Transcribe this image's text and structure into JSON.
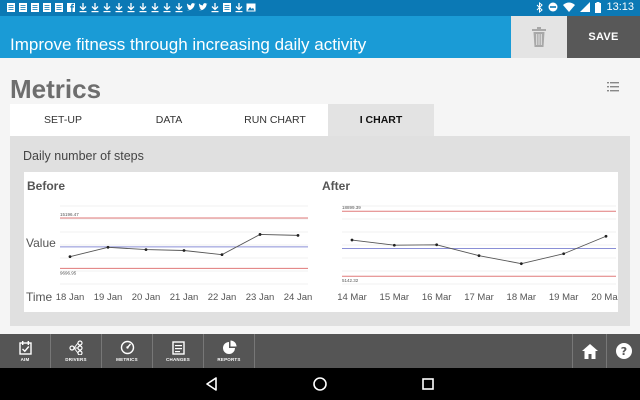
{
  "status_bar": {
    "notification_icons": [
      "document-icon",
      "document-icon",
      "document-icon",
      "document-icon",
      "document-icon",
      "facebook-icon",
      "download-icon",
      "download-icon",
      "download-icon",
      "download-icon",
      "download-icon",
      "download-icon",
      "download-icon",
      "download-icon",
      "download-icon",
      "twitter-icon",
      "twitter-icon",
      "download-icon",
      "document-icon",
      "download-icon",
      "photo-icon"
    ],
    "time": "13:13"
  },
  "header": {
    "title": "Improve fitness through increasing daily activity",
    "save_label": "SAVE"
  },
  "page": {
    "title": "Metrics"
  },
  "tabs": [
    {
      "label": "SET-UP",
      "active": false
    },
    {
      "label": "DATA",
      "active": false
    },
    {
      "label": "RUN CHART",
      "active": false
    },
    {
      "label": "I CHART",
      "active": true
    }
  ],
  "panel": {
    "title": "Daily number of steps"
  },
  "chart_data": [
    {
      "type": "line",
      "title": "Before",
      "ylabel": "Value",
      "xlabel": "Time",
      "categories": [
        "18 Jan",
        "19 Jan",
        "20 Jan",
        "21 Jan",
        "22 Jan",
        "23 Jan",
        "24 Jan"
      ],
      "values": [
        10980,
        12000,
        11750,
        11650,
        11200,
        13400,
        13300
      ],
      "upper_limit": 15196.47,
      "upper_limit_label": "15196.47",
      "lower_limit": 9696.95,
      "lower_limit_label": "9696.95",
      "ylim": [
        8000,
        16500
      ]
    },
    {
      "type": "line",
      "title": "After",
      "categories": [
        "14 Mar",
        "15 Mar",
        "16 Mar",
        "17 Mar",
        "18 Mar",
        "19 Mar",
        "20 Mar"
      ],
      "values": [
        12800,
        11700,
        11800,
        9500,
        7800,
        9900,
        13600
      ],
      "upper_limit": 18899.39,
      "upper_limit_label": "18899.39",
      "lower_limit": 5142.32,
      "lower_limit_label": "5142.32",
      "ylim": [
        3500,
        20000
      ]
    }
  ],
  "bottom_nav": {
    "items": [
      {
        "label": "AIM",
        "icon": "aim-icon"
      },
      {
        "label": "DRIVERS",
        "icon": "drivers-icon"
      },
      {
        "label": "METRICS",
        "icon": "metrics-icon"
      },
      {
        "label": "CHANGES",
        "icon": "changes-icon"
      },
      {
        "label": "REPORTS",
        "icon": "reports-icon"
      }
    ]
  },
  "colors": {
    "status_bar": "#0b79b5",
    "header": "#1a9bd6",
    "save_button": "#585858",
    "limit_line": "#e07a7a",
    "mean_line": "#8a8fd6",
    "data_line": "#555555"
  }
}
